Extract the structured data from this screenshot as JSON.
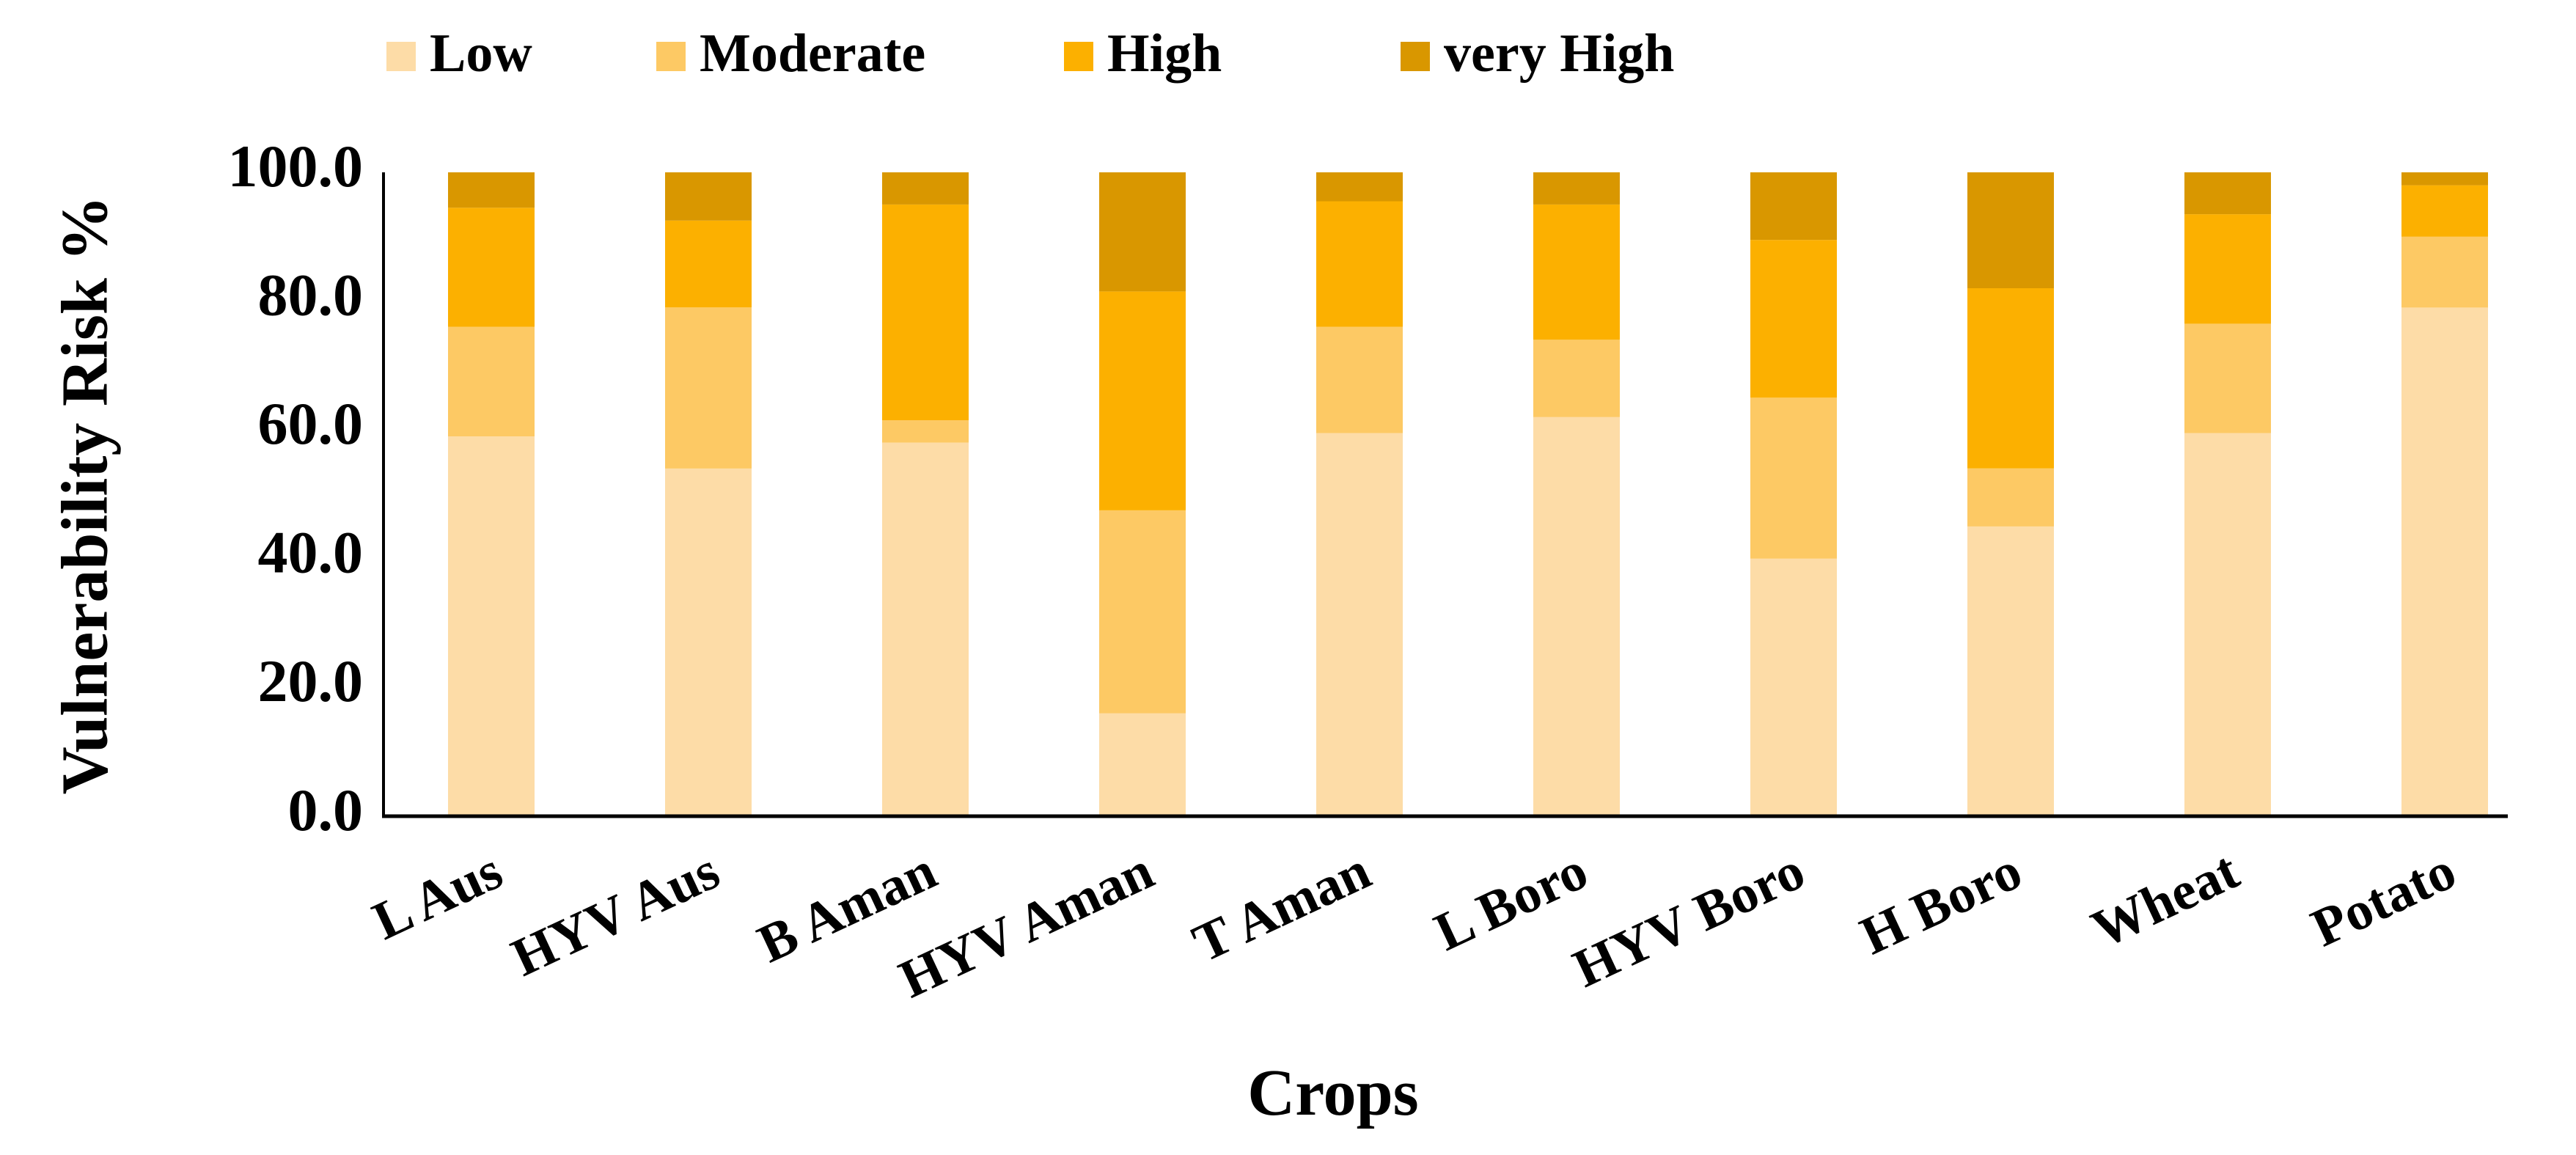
{
  "chart_data": {
    "type": "bar",
    "stacked": true,
    "title": "",
    "xlabel": "Crops",
    "ylabel": "Vulnerability Risk %",
    "ylim": [
      0,
      100
    ],
    "yticks": [
      "0.0",
      "20.0",
      "40.0",
      "60.0",
      "80.0",
      "100.0"
    ],
    "categories": [
      "L Aus",
      "HYV Aus",
      "B Aman",
      "HYV Aman",
      "T Aman",
      "L Boro",
      "HYV Boro",
      "H Boro",
      "Wheat",
      "Potato"
    ],
    "legend_position": "top",
    "series": [
      {
        "name": "Low",
        "color": "#fddca7",
        "values": [
          59,
          54,
          58,
          16,
          59.5,
          62,
          40,
          45,
          59.5,
          79
        ]
      },
      {
        "name": "Moderate",
        "color": "#fdc964",
        "values": [
          17,
          25,
          3.5,
          31.5,
          16.5,
          12,
          25,
          9,
          17,
          11
        ]
      },
      {
        "name": "High",
        "color": "#fcb000",
        "values": [
          18.5,
          13.5,
          33.5,
          34,
          19.5,
          21,
          24.5,
          28,
          17,
          8
        ]
      },
      {
        "name": "very High",
        "color": "#d99700",
        "values": [
          5.5,
          7.5,
          5,
          18.5,
          4.5,
          5,
          10.5,
          18,
          6.5,
          2
        ]
      }
    ]
  }
}
